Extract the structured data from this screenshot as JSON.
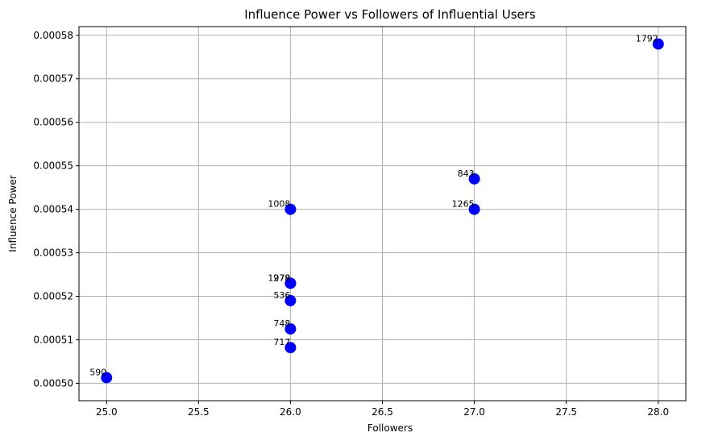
{
  "chart_data": {
    "type": "scatter",
    "title": "Influence Power vs Followers of Influential Users",
    "xlabel": "Followers",
    "ylabel": "Influence Power",
    "xlim": [
      24.85,
      28.15
    ],
    "ylim": [
      0.000496,
      0.000582
    ],
    "xticks": [
      25.0,
      25.5,
      26.0,
      26.5,
      27.0,
      27.5,
      28.0
    ],
    "xtick_labels": [
      "25.0",
      "25.5",
      "26.0",
      "26.5",
      "27.0",
      "27.5",
      "28.0"
    ],
    "yticks": [
      0.0005,
      0.00051,
      0.00052,
      0.00053,
      0.00054,
      0.00055,
      0.00056,
      0.00057,
      0.00058
    ],
    "ytick_labels": [
      "0.00050",
      "0.00051",
      "0.00052",
      "0.00053",
      "0.00054",
      "0.00055",
      "0.00056",
      "0.00057",
      "0.00058"
    ],
    "grid": true,
    "marker_color": "#0000ff",
    "points": [
      {
        "label": "1792",
        "x": 28.0,
        "y": 0.000578
      },
      {
        "label": "843",
        "x": 27.0,
        "y": 0.000547
      },
      {
        "label": "1265",
        "x": 27.0,
        "y": 0.00054
      },
      {
        "label": "1008",
        "x": 26.0,
        "y": 0.00054
      },
      {
        "label": "1279",
        "x": 26.0,
        "y": 0.000523
      },
      {
        "label": "978",
        "x": 26.0,
        "y": 0.000523
      },
      {
        "label": "536",
        "x": 26.0,
        "y": 0.000519
      },
      {
        "label": "748",
        "x": 26.0,
        "y": 0.0005125
      },
      {
        "label": "717",
        "x": 26.0,
        "y": 0.0005082
      },
      {
        "label": "590",
        "x": 25.0,
        "y": 0.0005013
      }
    ]
  }
}
